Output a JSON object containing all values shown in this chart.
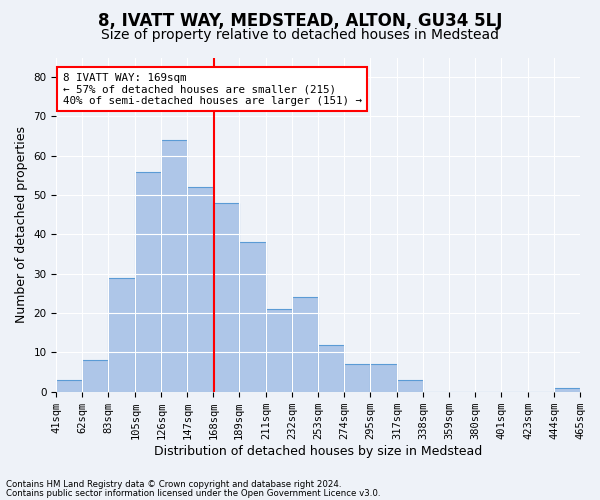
{
  "title": "8, IVATT WAY, MEDSTEAD, ALTON, GU34 5LJ",
  "subtitle": "Size of property relative to detached houses in Medstead",
  "xlabel": "Distribution of detached houses by size in Medstead",
  "ylabel": "Number of detached properties",
  "categories": [
    "41sqm",
    "62sqm",
    "83sqm",
    "105sqm",
    "126sqm",
    "147sqm",
    "168sqm",
    "189sqm",
    "211sqm",
    "232sqm",
    "253sqm",
    "274sqm",
    "295sqm",
    "317sqm",
    "338sqm",
    "359sqm",
    "380sqm",
    "401sqm",
    "423sqm",
    "444sqm",
    "465sqm"
  ],
  "hist_values": [
    3,
    8,
    29,
    56,
    64,
    52,
    48,
    38,
    21,
    24,
    12,
    7,
    7,
    3,
    0,
    0,
    0,
    0,
    0,
    1
  ],
  "bin_edges": [
    41,
    62,
    83,
    105,
    126,
    147,
    168,
    189,
    211,
    232,
    253,
    274,
    295,
    317,
    338,
    359,
    380,
    401,
    423,
    444,
    465
  ],
  "bar_color": "#aec6e8",
  "bar_edge_color": "#5b9bd5",
  "vline_x": 169,
  "vline_color": "red",
  "ylim": [
    0,
    85
  ],
  "yticks": [
    0,
    10,
    20,
    30,
    40,
    50,
    60,
    70,
    80
  ],
  "annotation_title": "8 IVATT WAY: 169sqm",
  "annotation_line1": "← 57% of detached houses are smaller (215)",
  "annotation_line2": "40% of semi-detached houses are larger (151) →",
  "annotation_box_color": "white",
  "annotation_box_edge": "red",
  "footer1": "Contains HM Land Registry data © Crown copyright and database right 2024.",
  "footer2": "Contains public sector information licensed under the Open Government Licence v3.0.",
  "bg_color": "#eef2f8",
  "grid_color": "white",
  "title_fontsize": 12,
  "subtitle_fontsize": 10,
  "axis_label_fontsize": 9,
  "tick_fontsize": 7.5
}
